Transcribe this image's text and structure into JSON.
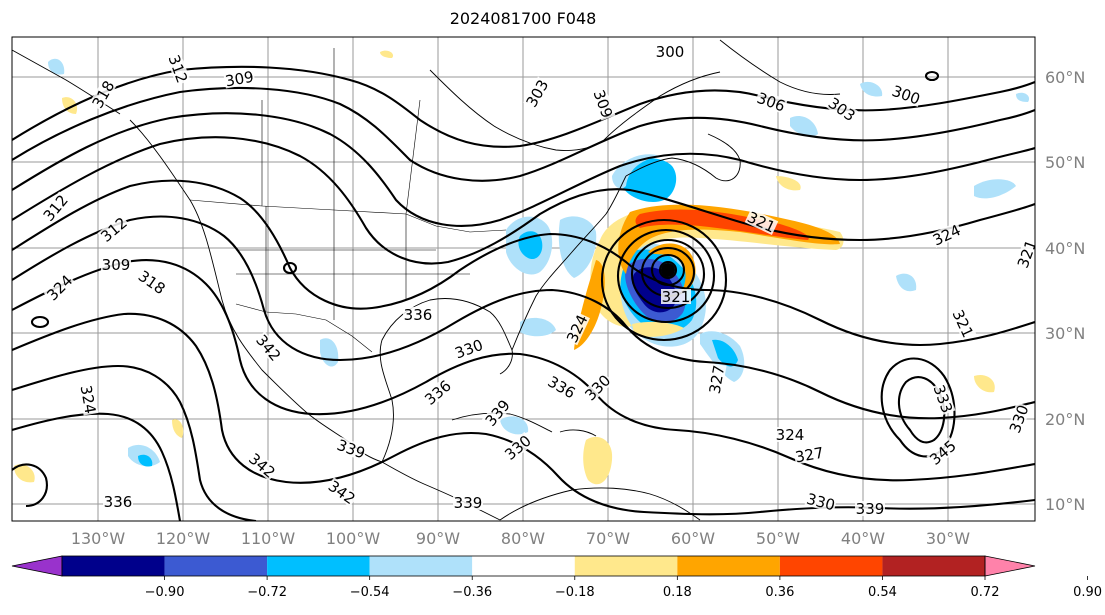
{
  "title": "2024081700 F048",
  "map": {
    "lat_labels": [
      "60°N",
      "50°N",
      "40°N",
      "30°N",
      "20°N",
      "10°N"
    ],
    "lon_labels": [
      "130°W",
      "120°W",
      "110°W",
      "100°W",
      "90°W",
      "80°W",
      "70°W",
      "60°W",
      "50°W",
      "40°W",
      "30°W"
    ],
    "contour_labels": [
      "300",
      "303",
      "306",
      "309",
      "312",
      "318",
      "321",
      "324",
      "327",
      "330",
      "333",
      "336",
      "339",
      "342",
      "345"
    ],
    "grid": true
  },
  "colorbar": {
    "ticks": [
      "−0.90",
      "−0.72",
      "−0.54",
      "−0.36",
      "−0.18",
      "0.18",
      "0.36",
      "0.54",
      "0.72",
      "0.90"
    ],
    "colors": [
      "#9932cc",
      "#00008b",
      "#3c5ad2",
      "#00bfff",
      "#afe1fa",
      "#ffffff",
      "#ffe88c",
      "#ffa500",
      "#ff4500",
      "#b22222",
      "#ff82aa"
    ]
  },
  "fills": {
    "blue_light": "#afe1fa",
    "blue_mid": "#00bfff",
    "blue_royal": "#3c5ad2",
    "blue_dark": "#00008b",
    "yellow": "#ffe88c",
    "orange": "#ffa500",
    "red": "#ff4500"
  }
}
